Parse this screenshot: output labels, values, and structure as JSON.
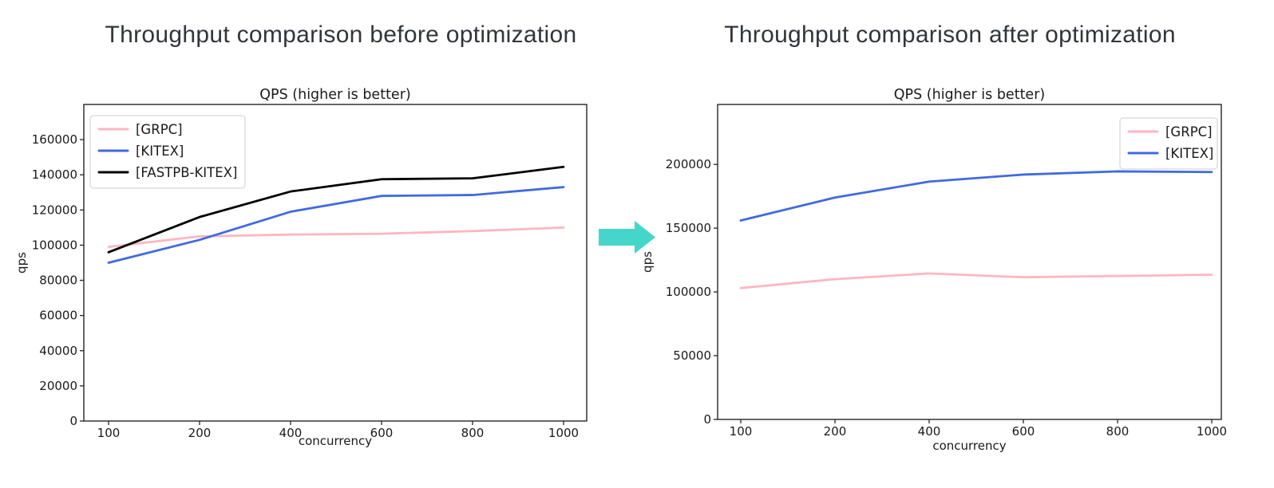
{
  "headings": {
    "before": "Throughput comparison before optimization",
    "after": "Throughput comparison after optimization"
  },
  "arrow": {
    "icon": "right-arrow-icon",
    "color": "#45d6ca"
  },
  "chart_data": [
    {
      "id": "before",
      "type": "line",
      "title": "QPS (higher is better)",
      "xlabel": "concurrency",
      "ylabel": "qps",
      "categories": [
        "100",
        "200",
        "400",
        "600",
        "800",
        "1000"
      ],
      "series": [
        {
          "name": "[GRPC]",
          "color": "#ffb6c1",
          "values": [
            99000,
            105000,
            106000,
            106500,
            108000,
            110000
          ]
        },
        {
          "name": "[KITEX]",
          "color": "#4169e1",
          "values": [
            90000,
            103000,
            119000,
            128000,
            128500,
            133000
          ]
        },
        {
          "name": "[FASTPB-KITEX]",
          "color": "#000000",
          "values": [
            96000,
            116000,
            130500,
            137500,
            138000,
            144500
          ]
        }
      ],
      "ylim": [
        0,
        180000
      ],
      "yticks": [
        0,
        20000,
        40000,
        60000,
        80000,
        100000,
        120000,
        140000,
        160000
      ],
      "legend_position": "upper-left",
      "grid": false
    },
    {
      "id": "after",
      "type": "line",
      "title": "QPS (higher is better)",
      "xlabel": "concurrency",
      "ylabel": "qps",
      "categories": [
        "100",
        "200",
        "400",
        "600",
        "800",
        "1000"
      ],
      "series": [
        {
          "name": "[GRPC]",
          "color": "#ffb6c1",
          "values": [
            103000,
            110000,
            114500,
            111500,
            112500,
            113500
          ]
        },
        {
          "name": "[KITEX]",
          "color": "#4169e1",
          "values": [
            156000,
            174000,
            186500,
            192000,
            194500,
            194000
          ]
        }
      ],
      "ylim": [
        0,
        247000
      ],
      "yticks": [
        0,
        50000,
        100000,
        150000,
        200000
      ],
      "legend_position": "upper-right",
      "grid": false
    }
  ]
}
